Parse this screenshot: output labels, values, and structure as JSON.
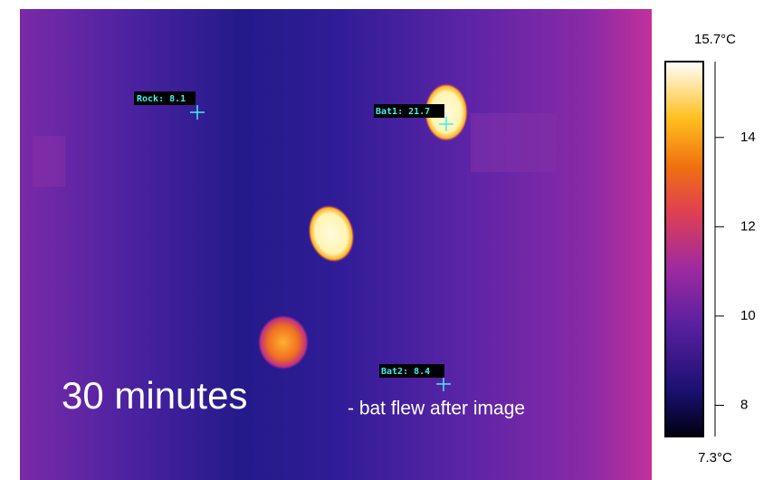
{
  "image": {
    "spots": [
      {
        "label": "Rock: 8.1"
      },
      {
        "label": "Bat1: 21.7"
      },
      {
        "label": "Bat2: 8.4"
      }
    ],
    "caption": "30 minutes",
    "note": "- bat flew after image"
  },
  "scale": {
    "lim": [
      {
        "value": 7.3,
        "label": "7.3°C"
      },
      {
        "value": 15.7,
        "label": "15.7°C"
      }
    ],
    "ticks": [
      14,
      12,
      10,
      8
    ]
  }
}
